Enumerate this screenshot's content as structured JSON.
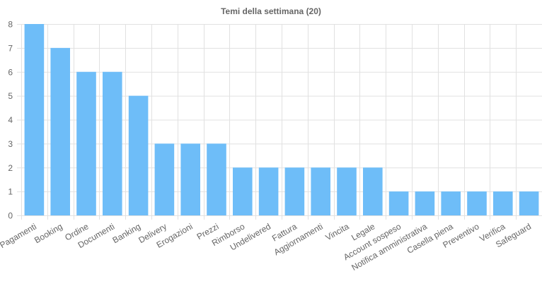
{
  "chart_data": {
    "type": "bar",
    "title": "Temi della settimana (20)",
    "xlabel": "",
    "ylabel": "",
    "categories": [
      "Pagamenti",
      "Booking",
      "Ordine",
      "Documenti",
      "Banking",
      "Delivery",
      "Erogazioni",
      "Prezzi",
      "Rimborso",
      "Undelivered",
      "Fattura",
      "Aggiornamenti",
      "Vincita",
      "Legale",
      "Account sospeso",
      "Notifica amministrativa",
      "Casella piena",
      "Preventivo",
      "Verifica",
      "Safeguard"
    ],
    "values": [
      8,
      7,
      6,
      6,
      5,
      3,
      3,
      3,
      2,
      2,
      2,
      2,
      2,
      2,
      1,
      1,
      1,
      1,
      1,
      1
    ],
    "ylim": [
      0,
      8
    ],
    "yticks": [
      "0",
      "1",
      "2",
      "3",
      "4",
      "5",
      "6",
      "7",
      "8"
    ],
    "grid": true,
    "legend": "none",
    "colors": {
      "bar": "#6ebdf8",
      "grid": "#e1e1e1",
      "text": "#666666"
    }
  }
}
